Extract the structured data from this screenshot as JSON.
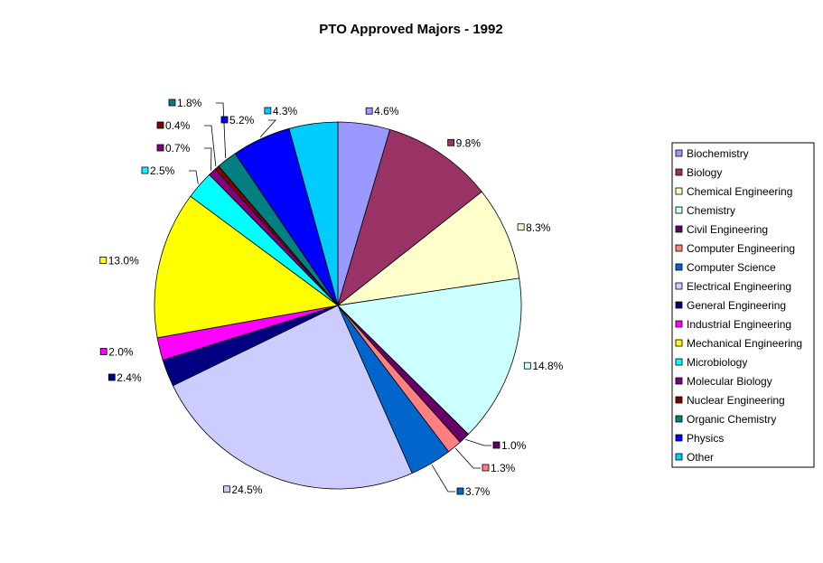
{
  "chart_data": {
    "type": "pie",
    "title": "PTO Approved Majors - 1992",
    "legend_position": "right",
    "slices": [
      {
        "label": "Biochemistry",
        "value": 4.6,
        "display": "4.6%",
        "color": "#9999ff"
      },
      {
        "label": "Biology",
        "value": 9.8,
        "display": "9.8%",
        "color": "#993366"
      },
      {
        "label": "Chemical Engineering",
        "value": 8.3,
        "display": "8.3%",
        "color": "#ffffcc"
      },
      {
        "label": "Chemistry",
        "value": 14.8,
        "display": "14.8%",
        "color": "#ccffff"
      },
      {
        "label": "Civil Engineering",
        "value": 1.0,
        "display": "1.0%",
        "color": "#660066"
      },
      {
        "label": "Computer Engineering",
        "value": 1.3,
        "display": "1.3%",
        "color": "#ff8080"
      },
      {
        "label": "Computer Science",
        "value": 3.7,
        "display": "3.7%",
        "color": "#0066cc"
      },
      {
        "label": "Electrical Engineering",
        "value": 24.5,
        "display": "24.5%",
        "color": "#ccccff"
      },
      {
        "label": "General Engineering",
        "value": 2.4,
        "display": "2.4%",
        "color": "#000080"
      },
      {
        "label": "Industrial Engineering",
        "value": 2.0,
        "display": "2.0%",
        "color": "#ff00ff"
      },
      {
        "label": "Mechanical Engineering",
        "value": 13.0,
        "display": "13.0%",
        "color": "#ffff00"
      },
      {
        "label": "Microbiology",
        "value": 2.5,
        "display": "2.5%",
        "color": "#00ffff"
      },
      {
        "label": "Molecular Biology",
        "value": 0.7,
        "display": "0.7%",
        "color": "#800080"
      },
      {
        "label": "Nuclear Engineering",
        "value": 0.4,
        "display": "0.4%",
        "color": "#800000"
      },
      {
        "label": "Organic Chemistry",
        "value": 1.8,
        "display": "1.8%",
        "color": "#008080"
      },
      {
        "label": "Physics",
        "value": 5.2,
        "display": "5.2%",
        "color": "#0000ff"
      },
      {
        "label": "Other",
        "value": 4.3,
        "display": "4.3%",
        "color": "#00ccff"
      }
    ]
  }
}
